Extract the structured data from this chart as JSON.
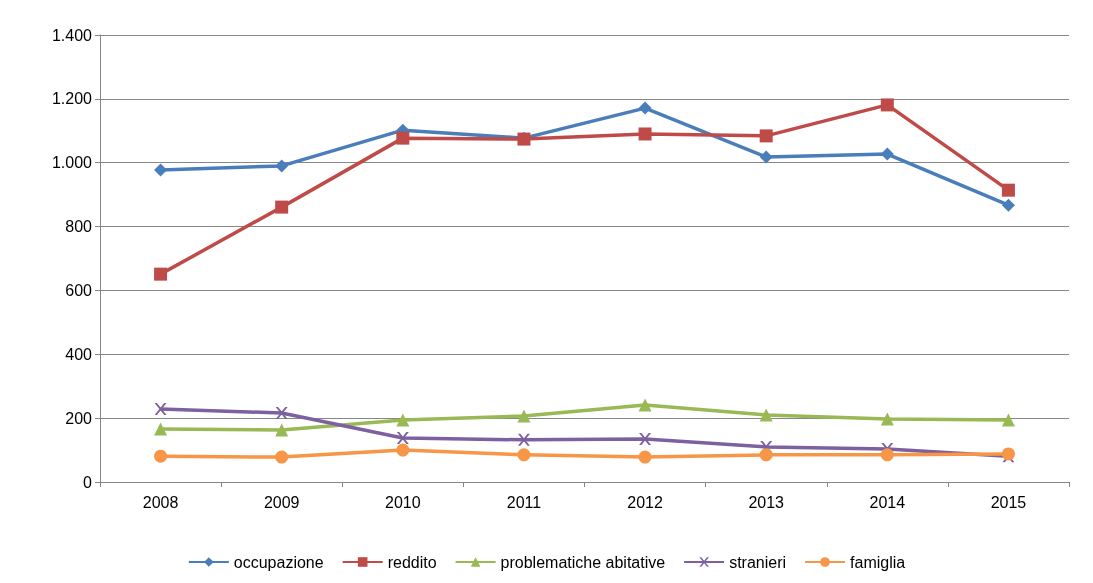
{
  "chart_data": {
    "type": "line",
    "categories": [
      "2008",
      "2009",
      "2010",
      "2011",
      "2012",
      "2013",
      "2014",
      "2015"
    ],
    "ylim": [
      0,
      1400
    ],
    "yticks": [
      0,
      200,
      400,
      600,
      800,
      {
        "value": 1000,
        "label": "1.000"
      },
      {
        "value": 1200,
        "label": "1.200"
      },
      {
        "value": 1400,
        "label": "1.400"
      }
    ],
    "grid": "y",
    "legend": "bottom",
    "series": [
      {
        "name": "occupazione",
        "color": "#4a7ebb",
        "marker": "diamond",
        "values": [
          977,
          990,
          1102,
          1077,
          1171,
          1018,
          1027,
          867
        ]
      },
      {
        "name": "reddito",
        "color": "#be4b48",
        "marker": "square",
        "values": [
          651,
          861,
          1077,
          1074,
          1090,
          1084,
          1181,
          914
        ]
      },
      {
        "name": "problematiche abitative",
        "color": "#98b954",
        "marker": "triangle",
        "values": [
          166,
          163,
          194,
          207,
          241,
          210,
          197,
          194
        ]
      },
      {
        "name": "stranieri",
        "color": "#7d60a0",
        "marker": "cross",
        "values": [
          229,
          216,
          138,
          132,
          135,
          110,
          103,
          81
        ]
      },
      {
        "name": "famiglia",
        "color": "#f79646",
        "marker": "circle",
        "values": [
          81,
          78,
          100,
          85,
          78,
          85,
          85,
          88
        ]
      }
    ]
  }
}
